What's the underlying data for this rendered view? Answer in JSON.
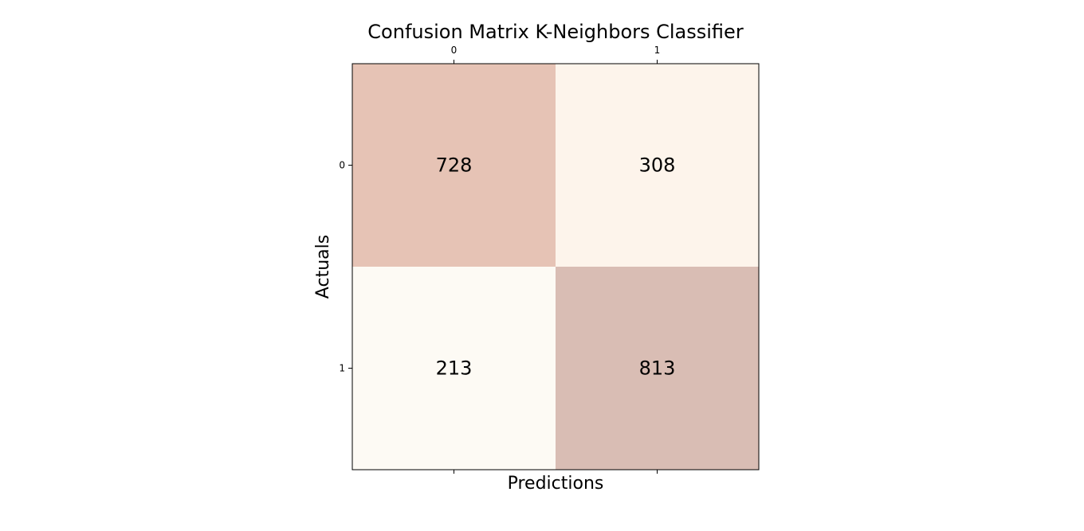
{
  "chart_data": {
    "type": "heatmap",
    "title": "Confusion Matrix K-Neighbors Classifier",
    "xlabel": "Predictions",
    "ylabel": "Actuals",
    "x_categories": [
      "0",
      "1"
    ],
    "y_categories": [
      "0",
      "1"
    ],
    "values": [
      [
        728,
        308
      ],
      [
        213,
        813
      ]
    ],
    "x_tick_position": "top",
    "grid": false,
    "colorbar": false,
    "cell_colors": [
      [
        "#e6c3b5",
        "#fdf4eb"
      ],
      [
        "#fdfaf4",
        "#d9bdb4"
      ]
    ]
  }
}
